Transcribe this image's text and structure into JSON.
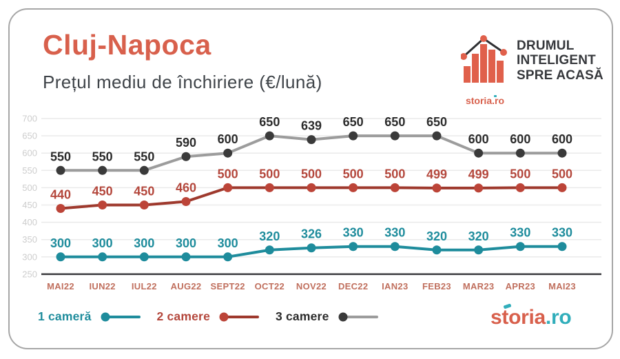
{
  "header": {
    "title": "Cluj-Napoca",
    "subtitle": "Prețul mediu de închiriere (€/lună)",
    "brand": {
      "icon": "storia-house-barchart-icon",
      "logo_text": "storia.ro",
      "tagline_lines": [
        "DRUMUL",
        "INTELIGENT",
        "SPRE ACASĂ"
      ]
    }
  },
  "chart_data": {
    "type": "line",
    "title": "Prețul mediu de închiriere (€/lună)",
    "xlabel": "",
    "ylabel": "",
    "categories": [
      "MAI22",
      "IUN22",
      "IUL22",
      "AUG22",
      "SEPT22",
      "OCT22",
      "NOV22",
      "DEC22",
      "IAN23",
      "FEB23",
      "MAR23",
      "APR23",
      "MAI23"
    ],
    "series": [
      {
        "name": "1 cameră",
        "values": [
          300,
          300,
          300,
          300,
          300,
          320,
          326,
          330,
          330,
          320,
          320,
          330,
          330
        ],
        "color": "#1E8C9C",
        "dot_color": "#1E8C9C",
        "label_color": "#1E8C9C"
      },
      {
        "name": "2 camere",
        "values": [
          440,
          450,
          450,
          460,
          500,
          500,
          500,
          500,
          500,
          499,
          499,
          500,
          500
        ],
        "color": "#9E392D",
        "dot_color": "#BC4438",
        "label_color": "#B4473C"
      },
      {
        "name": "3 camere",
        "values": [
          550,
          550,
          550,
          590,
          600,
          650,
          639,
          650,
          650,
          650,
          600,
          600,
          600
        ],
        "color": "#9C9C9C",
        "dot_color": "#3A3A3A",
        "label_color": "#2B2B2B"
      }
    ],
    "y_ticks": [
      700,
      650,
      600,
      550,
      500,
      450,
      400,
      350,
      300,
      250
    ],
    "ylim": [
      250,
      700
    ],
    "grid": true,
    "value_labels": true,
    "legend_position": "bottom",
    "colors": {
      "grid": "#EAEAEA",
      "axis": "#3A3A3E",
      "ytick": "#CDCDCD",
      "xlabel": "#C06F5D"
    }
  },
  "footer": {
    "logo_storia": "storia",
    "logo_ro": ".ro"
  }
}
